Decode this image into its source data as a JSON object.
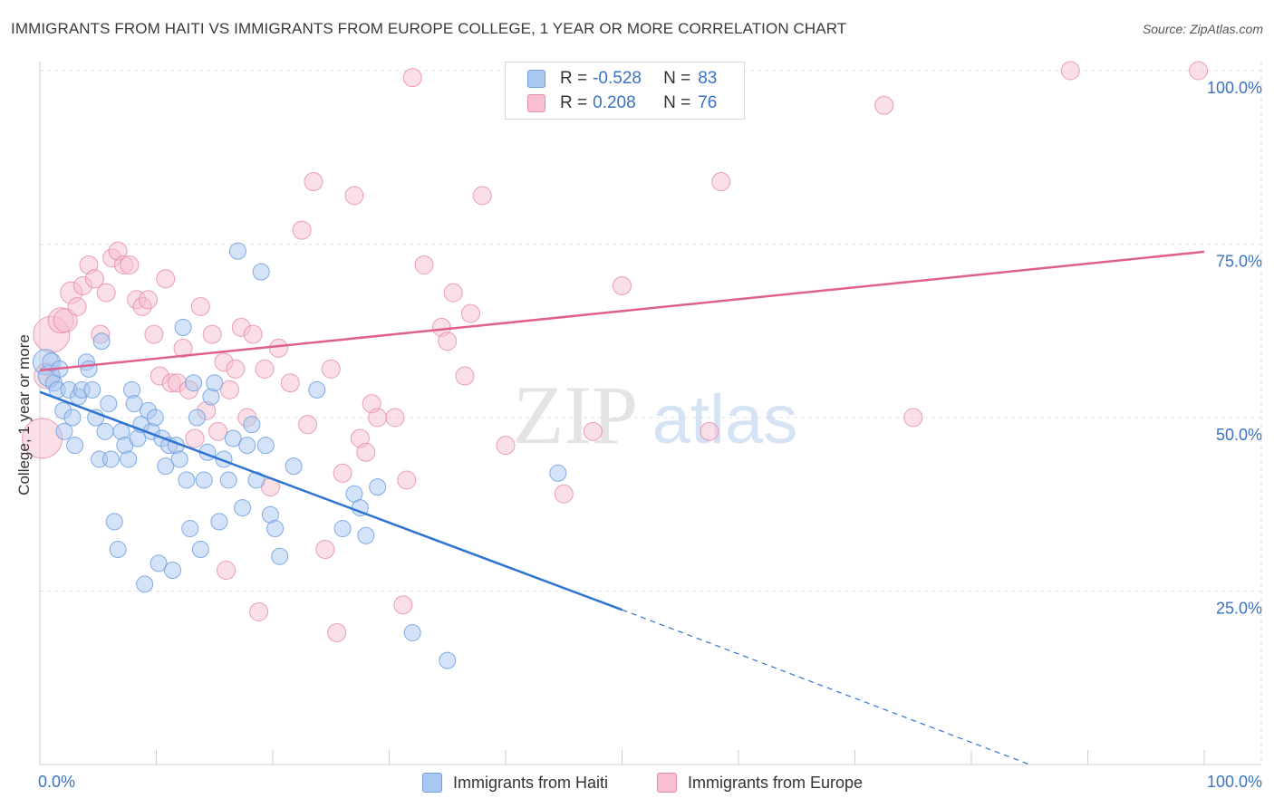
{
  "title": "IMMIGRANTS FROM HAITI VS IMMIGRANTS FROM EUROPE COLLEGE, 1 YEAR OR MORE CORRELATION CHART",
  "source": "Source: ZipAtlas.com",
  "watermark": {
    "zip": "ZIP",
    "atlas": "atlas"
  },
  "legend": {
    "rows": [
      {
        "r_label": "R =",
        "r_value": "-0.528",
        "n_label": "N =",
        "n_value": "83"
      },
      {
        "r_label": "R =",
        "r_value": "0.208",
        "n_label": "N =",
        "n_value": "76"
      }
    ]
  },
  "bottom_legend": {
    "series1": "Immigrants from Haiti",
    "series2": "Immigrants from Europe"
  },
  "colors": {
    "haiti_fill": "#a9c8f0",
    "haiti_stroke": "#6d9de0",
    "haiti_line": "#2f74d0",
    "europe_fill": "#f7bfd0",
    "europe_stroke": "#e58aa8",
    "europe_line": "#e0608c",
    "axis_text": "#3b73c2",
    "grid": "#e2e2e2"
  },
  "chart_data": {
    "type": "scatter",
    "title": "IMMIGRANTS FROM HAITI VS IMMIGRANTS FROM EUROPE COLLEGE, 1 YEAR OR MORE CORRELATION CHART",
    "xlabel": "",
    "ylabel": "College, 1 year or more",
    "xlim": [
      0,
      100
    ],
    "ylim": [
      0,
      100
    ],
    "x_tick_labels": [
      "0.0%",
      "100.0%"
    ],
    "y_tick_labels": [
      {
        "value": 25,
        "label": "25.0%"
      },
      {
        "value": 50,
        "label": "50.0%"
      },
      {
        "value": 75,
        "label": "75.0%"
      },
      {
        "value": 100,
        "label": "100.0%"
      }
    ],
    "series": [
      {
        "name": "Immigrants from Haiti",
        "r": -0.528,
        "n": 83,
        "trend": {
          "x0": 0,
          "y0": 53.7,
          "x1": 50,
          "y1": 22.3,
          "dash_to_x": 85,
          "dash_to_y": 0
        },
        "points": [
          [
            0.5,
            58,
            14
          ],
          [
            0.8,
            56,
            12
          ],
          [
            1,
            58,
            10
          ],
          [
            1.2,
            55,
            9
          ],
          [
            1.5,
            54,
            9
          ],
          [
            1.7,
            57,
            9
          ],
          [
            2,
            51,
            9
          ],
          [
            2.1,
            48,
            9
          ],
          [
            2.5,
            54,
            9
          ],
          [
            2.8,
            50,
            9
          ],
          [
            3,
            46,
            9
          ],
          [
            3.3,
            53,
            9
          ],
          [
            3.6,
            54,
            9
          ],
          [
            4,
            58,
            9
          ],
          [
            4.2,
            57,
            9
          ],
          [
            4.5,
            54,
            9
          ],
          [
            4.8,
            50,
            9
          ],
          [
            5.1,
            44,
            9
          ],
          [
            5.3,
            61,
            9
          ],
          [
            5.6,
            48,
            9
          ],
          [
            5.9,
            52,
            9
          ],
          [
            6.1,
            44,
            9
          ],
          [
            6.4,
            35,
            9
          ],
          [
            6.7,
            31,
            9
          ],
          [
            7,
            48,
            9
          ],
          [
            7.3,
            46,
            9
          ],
          [
            7.6,
            44,
            9
          ],
          [
            7.9,
            54,
            9
          ],
          [
            8.1,
            52,
            9
          ],
          [
            8.4,
            47,
            9
          ],
          [
            8.7,
            49,
            9
          ],
          [
            9,
            26,
            9
          ],
          [
            9.3,
            51,
            9
          ],
          [
            9.6,
            48,
            9
          ],
          [
            9.9,
            50,
            9
          ],
          [
            10.2,
            29,
            9
          ],
          [
            10.5,
            47,
            9
          ],
          [
            10.8,
            43,
            9
          ],
          [
            11.1,
            46,
            9
          ],
          [
            11.4,
            28,
            9
          ],
          [
            11.7,
            46,
            9
          ],
          [
            12,
            44,
            9
          ],
          [
            12.3,
            63,
            9
          ],
          [
            12.6,
            41,
            9
          ],
          [
            12.9,
            34,
            9
          ],
          [
            13.2,
            55,
            9
          ],
          [
            13.5,
            50,
            9
          ],
          [
            13.8,
            31,
            9
          ],
          [
            14.1,
            41,
            9
          ],
          [
            14.4,
            45,
            9
          ],
          [
            14.7,
            53,
            9
          ],
          [
            15,
            55,
            9
          ],
          [
            15.4,
            35,
            9
          ],
          [
            15.8,
            44,
            9
          ],
          [
            16.2,
            41,
            9
          ],
          [
            16.6,
            47,
            9
          ],
          [
            17,
            74,
            9
          ],
          [
            17.4,
            37,
            9
          ],
          [
            17.8,
            46,
            9
          ],
          [
            18.2,
            49,
            9
          ],
          [
            18.6,
            41,
            9
          ],
          [
            19,
            71,
            9
          ],
          [
            19.4,
            46,
            9
          ],
          [
            19.8,
            36,
            9
          ],
          [
            20.2,
            34,
            9
          ],
          [
            20.6,
            30,
            9
          ],
          [
            21.8,
            43,
            9
          ],
          [
            23.8,
            54,
            9
          ],
          [
            26,
            34,
            9
          ],
          [
            27,
            39,
            9
          ],
          [
            27.5,
            37,
            9
          ],
          [
            28,
            33,
            9
          ],
          [
            29,
            40,
            9
          ],
          [
            32,
            19,
            9
          ],
          [
            35,
            15,
            9
          ],
          [
            44.5,
            42,
            9
          ]
        ]
      },
      {
        "name": "Immigrants from Europe",
        "r": 0.208,
        "n": 76,
        "trend": {
          "x0": 0,
          "y0": 56.8,
          "x1": 100,
          "y1": 73.9
        },
        "points": [
          [
            0.2,
            47,
            22
          ],
          [
            1,
            62,
            20
          ],
          [
            0.6,
            56,
            14
          ],
          [
            1.8,
            64,
            14
          ],
          [
            2.2,
            64,
            13
          ],
          [
            2.7,
            68,
            12
          ],
          [
            3.2,
            66,
            10
          ],
          [
            3.7,
            69,
            10
          ],
          [
            4.2,
            72,
            10
          ],
          [
            4.7,
            70,
            10
          ],
          [
            5.2,
            62,
            10
          ],
          [
            5.7,
            68,
            10
          ],
          [
            6.2,
            73,
            10
          ],
          [
            6.7,
            74,
            10
          ],
          [
            7.2,
            72,
            10
          ],
          [
            7.7,
            72,
            10
          ],
          [
            8.3,
            67,
            10
          ],
          [
            8.8,
            66,
            10
          ],
          [
            9.3,
            67,
            10
          ],
          [
            9.8,
            62,
            10
          ],
          [
            10.3,
            56,
            10
          ],
          [
            10.8,
            70,
            10
          ],
          [
            11.3,
            55,
            10
          ],
          [
            11.8,
            55,
            10
          ],
          [
            12.3,
            60,
            10
          ],
          [
            12.8,
            54,
            10
          ],
          [
            13.3,
            47,
            10
          ],
          [
            13.8,
            66,
            10
          ],
          [
            14.3,
            51,
            10
          ],
          [
            14.8,
            62,
            10
          ],
          [
            15.3,
            48,
            10
          ],
          [
            15.8,
            58,
            10
          ],
          [
            16.3,
            54,
            10
          ],
          [
            16.8,
            57,
            10
          ],
          [
            17.3,
            63,
            10
          ],
          [
            17.8,
            50,
            10
          ],
          [
            18.3,
            62,
            10
          ],
          [
            18.8,
            22,
            10
          ],
          [
            19.3,
            57,
            10
          ],
          [
            19.8,
            40,
            10
          ],
          [
            20.5,
            60,
            10
          ],
          [
            21.5,
            55,
            10
          ],
          [
            22.5,
            77,
            10
          ],
          [
            23,
            49,
            10
          ],
          [
            23.5,
            84,
            10
          ],
          [
            24.5,
            31,
            10
          ],
          [
            25,
            57,
            10
          ],
          [
            26,
            42,
            10
          ],
          [
            27,
            82,
            10
          ],
          [
            27.5,
            47,
            10
          ],
          [
            28.5,
            52,
            10
          ],
          [
            29,
            50,
            10
          ],
          [
            30.5,
            50,
            10
          ],
          [
            31.5,
            41,
            10
          ],
          [
            31.2,
            23,
            10
          ],
          [
            32,
            99,
            10
          ],
          [
            33,
            72,
            10
          ],
          [
            34.5,
            63,
            10
          ],
          [
            35,
            61,
            10
          ],
          [
            35.5,
            68,
            10
          ],
          [
            36.5,
            56,
            10
          ],
          [
            37,
            65,
            10
          ],
          [
            38,
            82,
            10
          ],
          [
            40,
            46,
            10
          ],
          [
            45,
            39,
            10
          ],
          [
            47.5,
            48,
            10
          ],
          [
            50,
            69,
            10
          ],
          [
            57.5,
            48,
            10
          ],
          [
            58.5,
            84,
            10
          ],
          [
            72.5,
            95,
            10
          ],
          [
            75,
            50,
            10
          ],
          [
            88.5,
            100,
            10
          ],
          [
            99.5,
            100,
            10
          ],
          [
            25.5,
            19,
            10
          ],
          [
            16,
            28,
            10
          ],
          [
            28,
            45,
            10
          ]
        ]
      }
    ]
  }
}
